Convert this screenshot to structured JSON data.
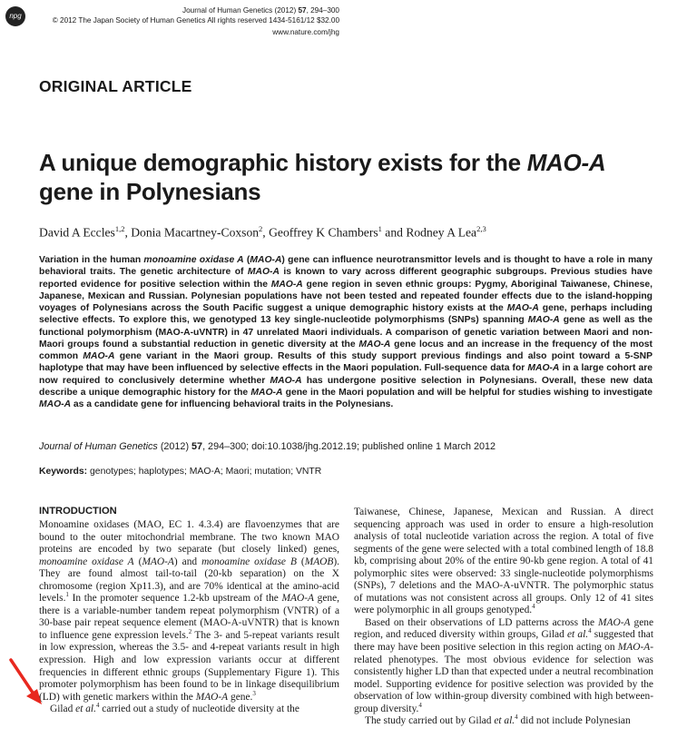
{
  "header": {
    "logo_text": "npg",
    "journal_line": {
      "journal_year": "Journal of Human Genetics (2012) ",
      "volume": "57",
      "pages": ", 294–300"
    },
    "copyright_line": "© 2012 The Japan Society of Human Genetics  All rights reserved 1434-5161/12 $32.00",
    "url": "www.nature.com/jhg"
  },
  "section_label": "ORIGINAL ARTICLE",
  "title": {
    "prefix": "A unique demographic history exists for the ",
    "gene": "MAO-A",
    "suffix": " gene in Polynesians"
  },
  "authors": {
    "a1": "David A Eccles",
    "a1_sup": "1,2",
    "a2": ", Donia Macartney-Coxson",
    "a2_sup": "2",
    "a3": ", Geoffrey K Chambers",
    "a3_sup": "1",
    "a4": " and Rodney A Lea",
    "a4_sup": "2,3"
  },
  "abstract": {
    "s1": "Variation in the human ",
    "s1_italic": "monoamine oxidase A",
    "s1b": " (",
    "s1_gene": "MAO-A",
    "s2": ") gene can influence neurotransmittor levels and is thought to have a role in many behavioral traits. The genetic architecture of ",
    "s2_gene": "MAO-A",
    "s3": " is known to vary across different geographic subgroups. Previous studies have reported evidence for positive selection within the ",
    "s3_gene": "MAO-A",
    "s4": " gene region in seven ethnic groups: Pygmy, Aboriginal Taiwanese, Chinese, Japanese, Mexican and Russian. Polynesian populations have not been tested and repeated founder effects due to the island-hopping voyages of Polynesians across the South Pacific suggest a unique demographic history exists at the ",
    "s4_gene": "MAO-A",
    "s5": " gene, perhaps including selective effects. To explore this, we genotyped 13 key single-nucleotide polymorphisms (SNPs) spanning ",
    "s5_gene": "MAO-A",
    "s6": " gene as well as the functional polymorphism (MAO-A-uVNTR) in 47 unrelated Maori individuals. A comparison of genetic variation between Maori and non-Maori groups found a substantial reduction in genetic diversity at the ",
    "s6_gene": "MAO-A",
    "s7": " gene locus and an increase in the frequency of the most common ",
    "s7_gene": "MAO-A",
    "s8": " gene variant in the Maori group. Results of this study support previous findings and also point toward a 5-SNP haplotype that may have been influenced by selective effects in the Maori population. Full-sequence data for ",
    "s8_gene": "MAO-A",
    "s9": " in a large cohort are now required to conclusively determine whether ",
    "s9_gene": "MAO-A",
    "s10": " has undergone positive selection in Polynesians. Overall, these new data describe a unique demographic history for the ",
    "s10_gene": "MAO-A",
    "s11": " gene in the Maori population and will be helpful for studies wishing to investigate ",
    "s11_gene": "MAO-A",
    "s12": " as a candidate gene for influencing behavioral traits in the Polynesians."
  },
  "citation": {
    "journal": "Journal of Human Genetics",
    "year": " (2012) ",
    "volume": "57",
    "rest": ", 294–300; doi:10.1038/jhg.2012.19; published online 1 March 2012"
  },
  "keywords": {
    "label": "Keywords:",
    "list": " genotypes; haplotypes; MAO-A; Maori; mutation; VNTR"
  },
  "intro_heading": "INTRODUCTION",
  "left_col": {
    "l1": "Monoamine oxidases (MAO, EC 1. 4.3.4) are flavoenzymes that are bound to the outer mitochondrial membrane. The two known MAO proteins are encoded by two separate (but closely linked) genes, ",
    "l1_i1": "monoamine oxidase A",
    "l1b": " (",
    "l1_i2": "MAO-A",
    "l1c": ") and ",
    "l1_i3": "monoamine oxidase B",
    "l1d": " (",
    "l1_i4": "MAOB",
    "l1e": "). They are found almost tail-to-tail (20-kb separation) on the X chromosome (region Xp11.3), and are 70% identical at the amino-acid levels.",
    "l1_sup1": "1",
    "l1f": " In the promoter sequence 1.2-kb upstream of the ",
    "l1_i5": "MAO-A",
    "l1g": " gene, there is a variable-number tandem repeat polymorphism (VNTR) of a 30-base pair repeat sequence element (MAO-A-uVNTR) that is known to influence gene expression levels.",
    "l1_sup2": "2",
    "l1h": " The 3- and 5-repeat variants result in low expression, whereas the 3.5- and 4-repeat variants result in high expression. High and low expression variants occur at different frequencies in different ethnic groups (Supplementary Figure 1). This promoter polymorphism has been found to be in linkage disequilibrium (LD) with genetic markers within the ",
    "l1_i6": "MAO-A",
    "l1i": " gene.",
    "l1_sup3": "3",
    "l2": "Gilad ",
    "l2_i": "et al.",
    "l2_sup": "4",
    "l2b": " carried out a study of nucleotide diversity at the"
  },
  "right_col": {
    "r1": "Taiwanese, Chinese, Japanese, Mexican and Russian. A direct sequencing approach was used in order to ensure a high-resolution analysis of total nucleotide variation across the region. A total of five segments of the gene were selected with a total combined length of 18.8 kb, comprising about 20% of the entire 90-kb gene region. A total of 41 polymorphic sites were observed: 33 single-nucleotide polymorphisms (SNPs), 7 deletions and the MAO-A-uVNTR. The polymorphic status of mutations was not consistent across all groups. Only 12 of 41 sites were polymorphic in all groups genotyped.",
    "r1_sup": "4",
    "r2": "Based on their observations of LD patterns across the ",
    "r2_i1": "MAO-A",
    "r2b": " gene region, and reduced diversity within groups, Gilad ",
    "r2_i2": "et al.",
    "r2_sup1": "4",
    "r2c": " suggested that there may have been positive selection in this region acting on ",
    "r2_i3": "MAO-A",
    "r2d": "-related phenotypes. The most obvious evidence for selection was consistently higher LD than that expected under a neutral recombination model. Supporting evidence for positive selection was provided by the observation of low within-group diversity combined with high between-group diversity.",
    "r2_sup2": "4",
    "r3": "The study carried out by Gilad ",
    "r3_i": "et al.",
    "r3_sup": "4",
    "r3b": " did not include Polynesian"
  },
  "colors": {
    "text": "#1a1a1a",
    "annotation_arrow": "#e8281f"
  },
  "icons": {
    "annotation": "red-arrow-icon"
  }
}
